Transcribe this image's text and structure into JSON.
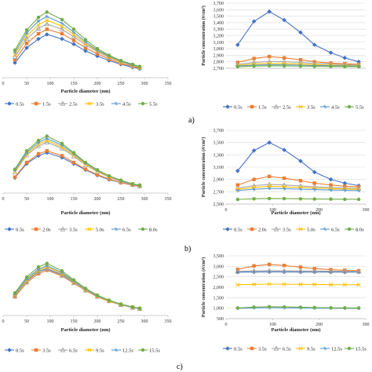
{
  "panel_labels": [
    "a)",
    "b)",
    "c)"
  ],
  "chart_data": [
    {
      "type": "line",
      "xlabel": "Particle diameter (nm)",
      "ylabel": "",
      "xlim": [
        0,
        350
      ],
      "xticks": [
        0,
        50,
        100,
        150,
        200,
        250,
        300,
        350
      ],
      "ylim": [
        0,
        10
      ],
      "yticks": [],
      "legend_position": "bottom",
      "x": [
        25,
        50,
        75,
        93,
        125,
        150,
        175,
        200,
        225,
        250,
        275,
        290
      ],
      "series": [
        {
          "name": "0.5s",
          "color": "#4472c4",
          "values": [
            2.0,
            4.0,
            5.2,
            5.8,
            5.2,
            4.5,
            3.6,
            2.9,
            2.3,
            1.8,
            1.4,
            1.2
          ]
        },
        {
          "name": "1.5s",
          "color": "#ed7d31",
          "values": [
            2.4,
            4.6,
            5.9,
            6.5,
            5.9,
            5.0,
            4.0,
            3.2,
            2.5,
            1.9,
            1.5,
            1.3
          ]
        },
        {
          "name": "2.5s",
          "color": "#a5a5a5",
          "values": [
            2.8,
            5.2,
            6.6,
            7.2,
            6.5,
            5.5,
            4.4,
            3.5,
            2.7,
            2.1,
            1.6,
            1.4
          ]
        },
        {
          "name": "3.5s",
          "color": "#ffc000",
          "values": [
            3.1,
            5.6,
            7.1,
            7.7,
            6.9,
            5.8,
            4.6,
            3.6,
            2.8,
            2.1,
            1.7,
            1.4
          ]
        },
        {
          "name": "4.5s",
          "color": "#5b9bd5",
          "values": [
            3.4,
            6.0,
            7.6,
            8.2,
            7.3,
            6.1,
            4.8,
            3.7,
            2.9,
            2.2,
            1.7,
            1.5
          ]
        },
        {
          "name": "5.5s",
          "color": "#70ad47",
          "values": [
            3.7,
            6.4,
            8.1,
            8.8,
            7.8,
            6.5,
            5.1,
            3.9,
            3.0,
            2.3,
            1.8,
            1.5
          ]
        }
      ]
    },
    {
      "type": "line",
      "xlabel": "",
      "ylabel": "Particle  concentration (#/cm³)",
      "xlim": [
        0,
        300
      ],
      "xticks": [],
      "ylim": [
        2700,
        3700
      ],
      "yticks": [
        2700,
        2800,
        2900,
        3000,
        3100,
        3200,
        3300,
        3400,
        3500,
        3600,
        3700
      ],
      "ytick_labels": [
        "2,700",
        "2,800",
        "2,900",
        "3,000",
        "3,100",
        "3,200",
        "3,300",
        "3,400",
        "3,500",
        "3,600",
        "3,700"
      ],
      "legend_position": "bottom",
      "x": [
        25,
        60,
        93,
        125,
        160,
        190,
        225,
        255,
        285
      ],
      "series": [
        {
          "name": "0.5s",
          "color": "#4472c4",
          "values": [
            3060,
            3420,
            3570,
            3440,
            3250,
            3060,
            2940,
            2860,
            2800
          ]
        },
        {
          "name": "1.5s",
          "color": "#ed7d31",
          "values": [
            2790,
            2850,
            2880,
            2860,
            2830,
            2800,
            2780,
            2770,
            2760
          ]
        },
        {
          "name": "2.5s",
          "color": "#a5a5a5",
          "values": [
            2760,
            2790,
            2805,
            2800,
            2790,
            2775,
            2765,
            2755,
            2750
          ]
        },
        {
          "name": "3.5s",
          "color": "#ffc000",
          "values": [
            2745,
            2765,
            2775,
            2770,
            2765,
            2755,
            2748,
            2743,
            2740
          ]
        },
        {
          "name": "4.5s",
          "color": "#5b9bd5",
          "values": [
            2735,
            2748,
            2755,
            2752,
            2748,
            2742,
            2738,
            2735,
            2733
          ]
        },
        {
          "name": "5.5s",
          "color": "#70ad47",
          "values": [
            2725,
            2733,
            2738,
            2736,
            2733,
            2730,
            2728,
            2726,
            2725
          ]
        }
      ]
    },
    {
      "type": "line",
      "xlabel": "Particle diameter (nm)",
      "ylabel": "",
      "xlim": [
        0,
        350
      ],
      "xticks": [
        0,
        50,
        100,
        150,
        200,
        250,
        300,
        350
      ],
      "ylim": [
        0,
        10
      ],
      "yticks": [],
      "legend_position": "bottom",
      "x": [
        25,
        50,
        75,
        93,
        125,
        150,
        175,
        200,
        225,
        250,
        275,
        290
      ],
      "series": [
        {
          "name": "0.5s",
          "color": "#4472c4",
          "values": [
            2.5,
            4.8,
            6.1,
            6.6,
            5.8,
            4.8,
            3.8,
            2.9,
            2.2,
            1.7,
            1.3,
            1.1
          ]
        },
        {
          "name": "2.0s",
          "color": "#ed7d31",
          "values": [
            2.6,
            5.0,
            6.4,
            6.9,
            6.1,
            5.0,
            3.9,
            3.0,
            2.3,
            1.7,
            1.3,
            1.1
          ]
        },
        {
          "name": "3.5s",
          "color": "#a5a5a5",
          "values": [
            3.4,
            6.2,
            7.7,
            8.3,
            7.3,
            6.0,
            4.6,
            3.5,
            2.6,
            1.9,
            1.4,
            1.2
          ]
        },
        {
          "name": "5.0s",
          "color": "#ffc000",
          "values": [
            3.5,
            6.4,
            8.0,
            8.6,
            7.5,
            6.2,
            4.7,
            3.6,
            2.7,
            2.0,
            1.5,
            1.2
          ]
        },
        {
          "name": "6.5s",
          "color": "#5b9bd5",
          "values": [
            3.7,
            6.6,
            8.3,
            8.9,
            7.8,
            6.4,
            4.9,
            3.7,
            2.8,
            2.0,
            1.5,
            1.2
          ]
        },
        {
          "name": "8.0s",
          "color": "#70ad47",
          "values": [
            3.9,
            6.9,
            8.6,
            9.3,
            8.1,
            6.6,
            5.0,
            3.8,
            2.8,
            2.1,
            1.5,
            1.3
          ]
        }
      ]
    },
    {
      "type": "line",
      "xlabel": "Particle diameter (nm)",
      "ylabel": "Particle  concentration (#/cm³)",
      "xlim": [
        0,
        300
      ],
      "xticks": [
        0,
        100,
        200,
        300
      ],
      "ylim": [
        2500,
        3700
      ],
      "yticks": [
        2500,
        2700,
        2900,
        3100,
        3300,
        3500,
        3700
      ],
      "ytick_labels": [
        "2,500",
        "2,700",
        "2,900",
        "3,100",
        "3,300",
        "3,500",
        "3,700"
      ],
      "legend_position": "bottom",
      "x": [
        25,
        60,
        93,
        125,
        160,
        190,
        225,
        255,
        285
      ],
      "series": [
        {
          "name": "0.5s",
          "color": "#4472c4",
          "values": [
            3040,
            3370,
            3500,
            3380,
            3200,
            3020,
            2900,
            2840,
            2800
          ]
        },
        {
          "name": "2.0s",
          "color": "#ed7d31",
          "values": [
            2810,
            2900,
            2950,
            2920,
            2880,
            2840,
            2810,
            2790,
            2780
          ]
        },
        {
          "name": "3.5s",
          "color": "#a5a5a5",
          "values": [
            2760,
            2800,
            2820,
            2810,
            2795,
            2780,
            2770,
            2760,
            2755
          ]
        },
        {
          "name": "5.0s",
          "color": "#ffc000",
          "values": [
            2740,
            2770,
            2790,
            2780,
            2770,
            2760,
            2750,
            2745,
            2740
          ]
        },
        {
          "name": "6.5s",
          "color": "#5b9bd5",
          "values": [
            2720,
            2740,
            2755,
            2750,
            2742,
            2735,
            2728,
            2724,
            2720
          ]
        },
        {
          "name": "8.0s",
          "color": "#70ad47",
          "values": [
            2575,
            2585,
            2590,
            2588,
            2585,
            2582,
            2580,
            2578,
            2577
          ]
        }
      ]
    },
    {
      "type": "line",
      "xlabel": "Particle diameter (nm)",
      "ylabel": "",
      "xlim": [
        0,
        350
      ],
      "xticks": [
        0,
        50,
        100,
        150,
        200,
        250,
        300,
        350
      ],
      "ylim": [
        0,
        10
      ],
      "yticks": [],
      "legend_position": "bottom",
      "x": [
        25,
        50,
        75,
        93,
        125,
        150,
        175,
        200,
        225,
        250,
        275,
        290
      ],
      "series": [
        {
          "name": "0.5s",
          "color": "#4472c4",
          "values": [
            3.6,
            6.1,
            7.8,
            8.3,
            7.2,
            5.9,
            4.6,
            3.4,
            2.6,
            1.9,
            1.4,
            1.2
          ]
        },
        {
          "name": "3.5s",
          "color": "#ed7d31",
          "values": [
            3.3,
            5.8,
            7.4,
            8.0,
            7.0,
            5.7,
            4.4,
            3.3,
            2.5,
            1.9,
            1.4,
            1.2
          ]
        },
        {
          "name": "6.5s",
          "color": "#a5a5a5",
          "values": [
            3.5,
            6.0,
            7.7,
            8.2,
            7.1,
            5.8,
            4.5,
            3.4,
            2.6,
            1.9,
            1.4,
            1.2
          ]
        },
        {
          "name": "9.5s",
          "color": "#ffc000",
          "values": [
            3.7,
            6.3,
            8.0,
            8.6,
            7.4,
            6.0,
            4.6,
            3.5,
            2.6,
            2.0,
            1.5,
            1.2
          ]
        },
        {
          "name": "12.5s",
          "color": "#5b9bd5",
          "values": [
            3.8,
            6.5,
            8.2,
            8.8,
            7.6,
            6.1,
            4.7,
            3.5,
            2.7,
            2.0,
            1.5,
            1.2
          ]
        },
        {
          "name": "15.5s",
          "color": "#70ad47",
          "values": [
            4.0,
            6.8,
            8.6,
            9.2,
            7.9,
            6.3,
            4.8,
            3.6,
            2.7,
            2.0,
            1.5,
            1.3
          ]
        }
      ]
    },
    {
      "type": "line",
      "xlabel": "Particle diameter (nm)",
      "ylabel": "Particle  concentration (#/cm³)",
      "xlim": [
        0,
        300
      ],
      "xticks": [
        0,
        100,
        200,
        300
      ],
      "ylim": [
        500,
        3500
      ],
      "yticks": [
        500,
        1000,
        1500,
        2000,
        2500,
        3000,
        3500
      ],
      "ytick_labels": [
        "500",
        "1,000",
        "1,500",
        "2,000",
        "2,500",
        "3,000",
        "3,500"
      ],
      "legend_position": "bottom",
      "x": [
        25,
        60,
        93,
        125,
        160,
        190,
        225,
        255,
        285
      ],
      "series": [
        {
          "name": "0.5s",
          "color": "#4472c4",
          "values": [
            2720,
            2730,
            2735,
            2733,
            2730,
            2727,
            2725,
            2723,
            2722
          ]
        },
        {
          "name": "3.5s",
          "color": "#ed7d31",
          "values": [
            2850,
            3020,
            3090,
            3040,
            2960,
            2890,
            2840,
            2810,
            2790
          ]
        },
        {
          "name": "6.5s",
          "color": "#a5a5a5",
          "values": [
            2760,
            2780,
            2790,
            2786,
            2780,
            2774,
            2768,
            2764,
            2760
          ]
        },
        {
          "name": "9.5s",
          "color": "#ffc000",
          "values": [
            2120,
            2140,
            2150,
            2145,
            2138,
            2132,
            2126,
            2122,
            2120
          ]
        },
        {
          "name": "12.5s",
          "color": "#5b9bd5",
          "values": [
            990,
            1010,
            1020,
            1015,
            1008,
            1000,
            995,
            990,
            988
          ]
        },
        {
          "name": "15.5s",
          "color": "#70ad47",
          "values": [
            1010,
            1050,
            1070,
            1060,
            1045,
            1030,
            1020,
            1012,
            1008
          ]
        }
      ]
    }
  ]
}
